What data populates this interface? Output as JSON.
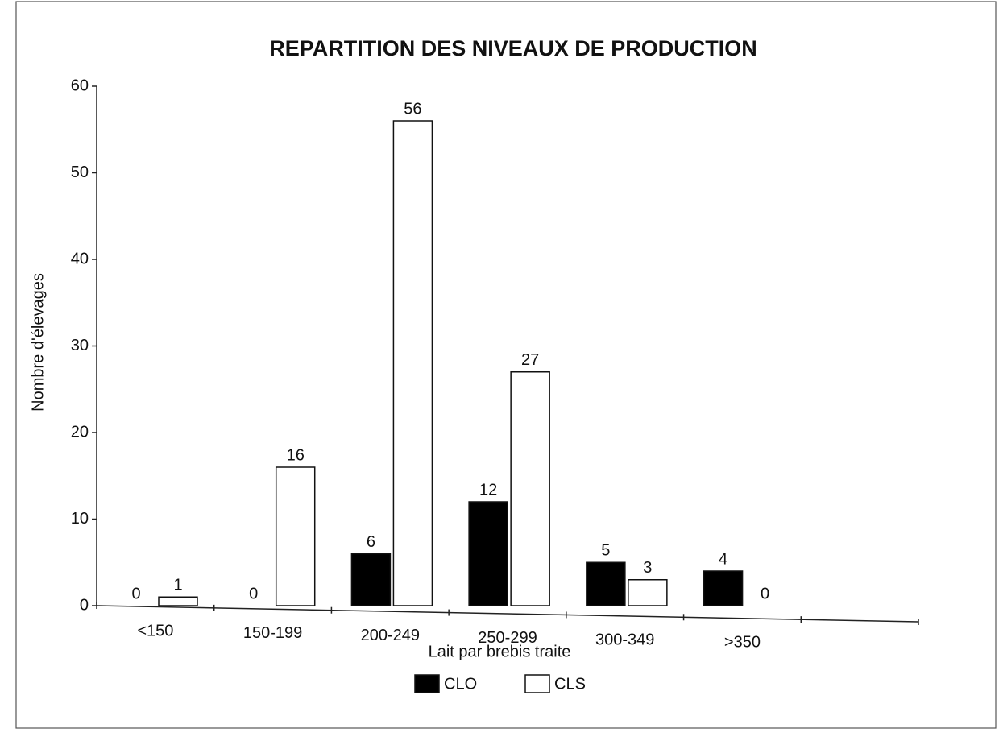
{
  "chart_data": {
    "type": "bar",
    "title": "REPARTITION DES NIVEAUX DE PRODUCTION",
    "xlabel": "Lait par brebis traite",
    "ylabel": "Nombre d'élevages",
    "categories": [
      "<150",
      "150-199",
      "200-249",
      "250-299",
      "300-349",
      ">350",
      null
    ],
    "series": [
      {
        "name": "CLO",
        "color": "#000000",
        "values": [
          0,
          0,
          6,
          12,
          5,
          4,
          null
        ]
      },
      {
        "name": "CLS",
        "color": "#ffffff",
        "values": [
          1,
          16,
          56,
          27,
          3,
          0,
          null
        ]
      }
    ],
    "ylim": [
      0,
      60
    ],
    "yticks": [
      0,
      10,
      20,
      30,
      40,
      50,
      60
    ],
    "data_labels": true,
    "legend": "bottom"
  }
}
